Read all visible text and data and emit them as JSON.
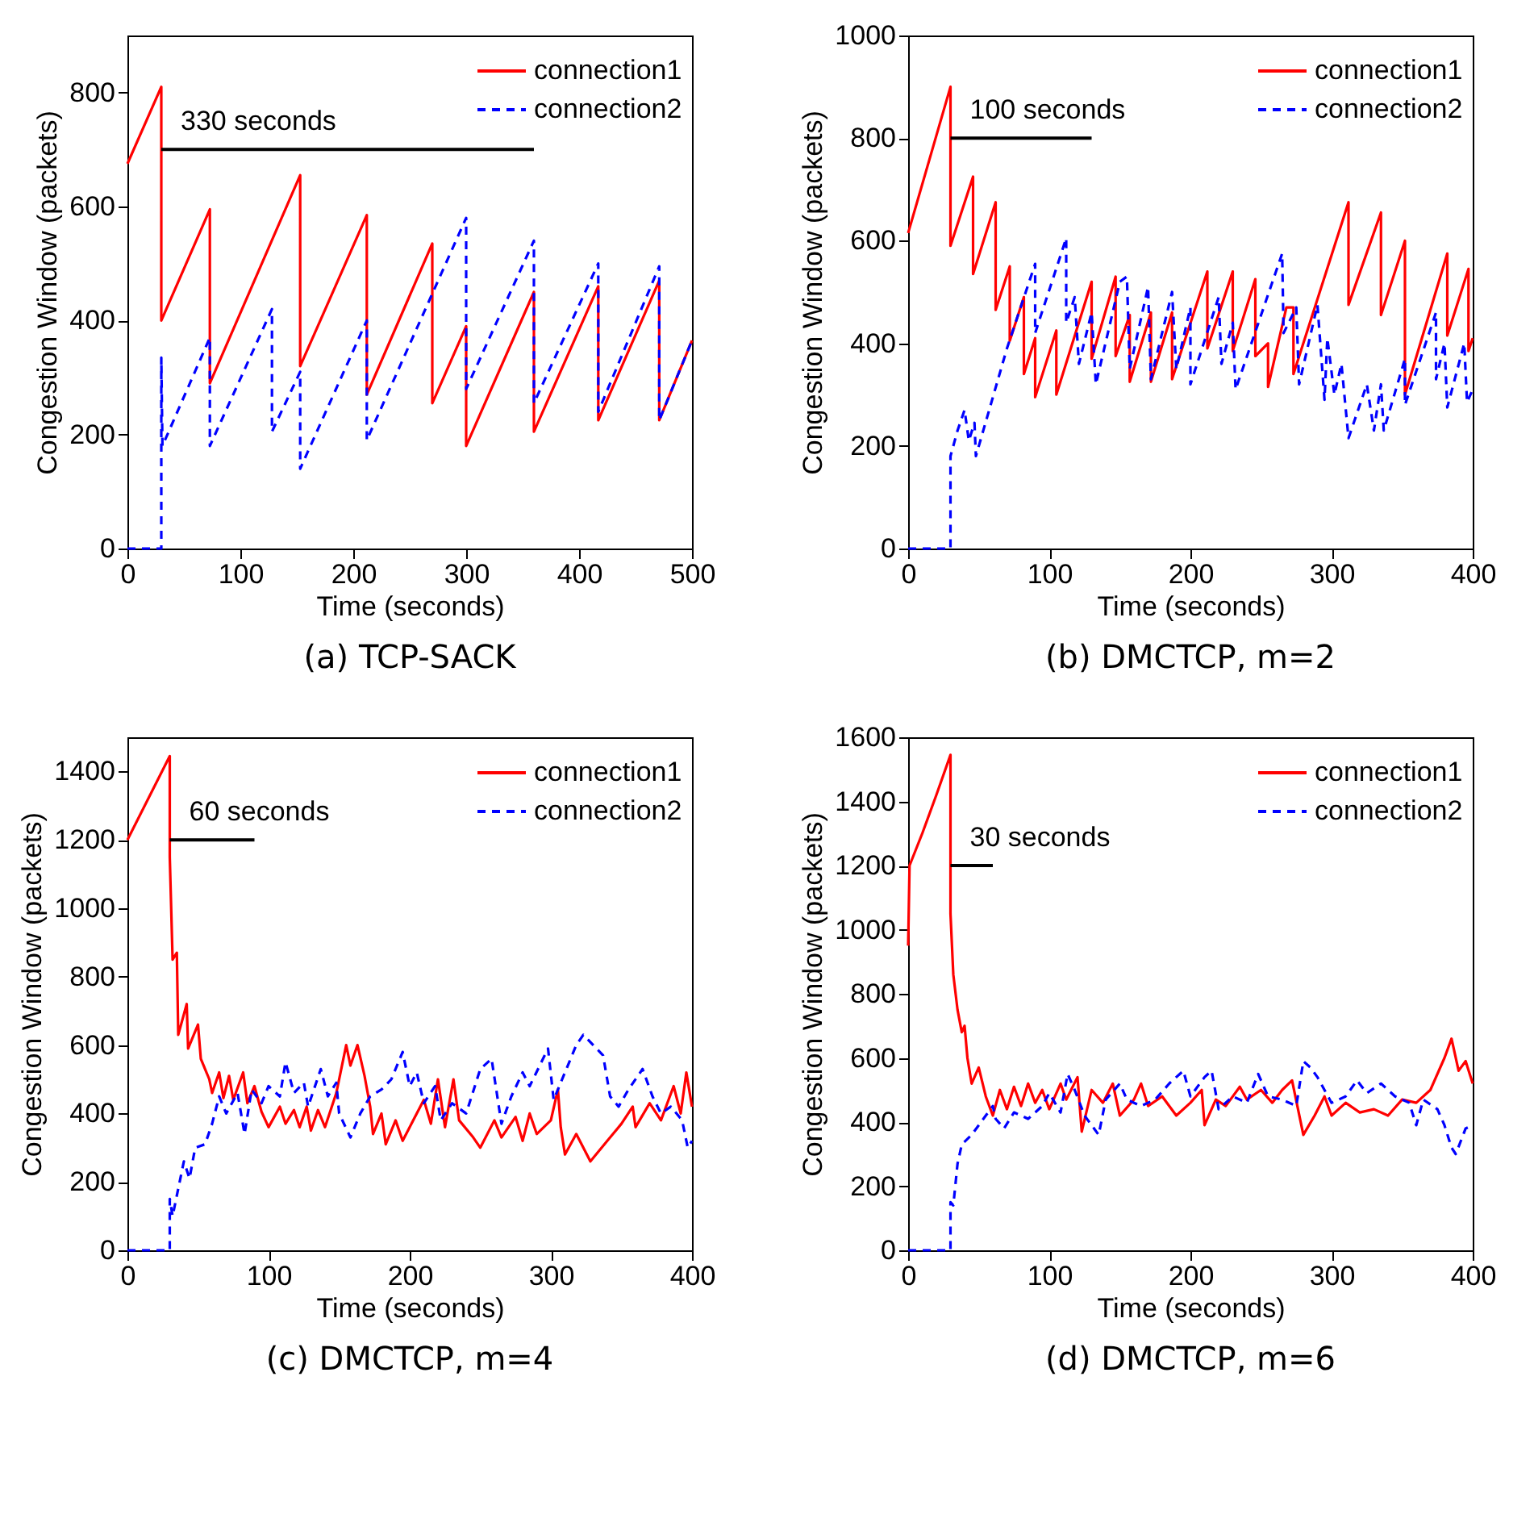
{
  "chart_data": [
    {
      "type": "line",
      "title": "(a) TCP-SACK",
      "xlabel": "Time (seconds)",
      "ylabel": "Congestion Window (packets)",
      "xlim": [
        0,
        500
      ],
      "xticks": [
        0,
        100,
        200,
        300,
        400,
        500
      ],
      "ylim": [
        0,
        900
      ],
      "yticks": [
        0,
        200,
        400,
        600,
        800
      ],
      "grid": false,
      "legend": "top right",
      "marker": "none",
      "series": [
        {
          "name": "connection1",
          "color": "#ff0000",
          "line_style": "solid",
          "x": [
            0,
            30,
            30,
            73,
            73,
            153,
            153,
            212,
            212,
            270,
            270,
            300,
            300,
            360,
            360,
            417,
            417,
            471,
            471,
            500
          ],
          "values": [
            675,
            810,
            400,
            595,
            290,
            655,
            320,
            585,
            270,
            535,
            255,
            390,
            180,
            450,
            205,
            460,
            225,
            470,
            225,
            365
          ]
        },
        {
          "name": "connection2",
          "color": "#0000ff",
          "line_style": "dashed",
          "x": [
            0,
            30,
            30,
            31,
            73,
            73,
            128,
            128,
            153,
            153,
            212,
            212,
            300,
            300,
            360,
            360,
            417,
            417,
            471,
            471,
            500
          ],
          "values": [
            0,
            0,
            335,
            180,
            370,
            180,
            420,
            205,
            310,
            140,
            400,
            190,
            580,
            280,
            540,
            255,
            500,
            240,
            495,
            225,
            365
          ]
        },
        {
          "type": "line",
          "color": "#000000",
          "line_style": "solid",
          "x": [
            30,
            360
          ],
          "values": [
            700,
            700
          ]
        }
      ],
      "annotations": [
        "330 seconds"
      ]
    },
    {
      "type": "line",
      "title": "(b) DMCTCP, m=2",
      "xlabel": "Time (seconds)",
      "ylabel": "Congestion Window (packets)",
      "xlim": [
        0,
        400
      ],
      "xticks": [
        0,
        100,
        200,
        300,
        400
      ],
      "ylim": [
        0,
        1000
      ],
      "yticks": [
        0,
        200,
        400,
        600,
        800,
        1000
      ],
      "grid": false,
      "legend": "top right",
      "marker": "none",
      "series": [
        {
          "name": "connection1",
          "color": "#ff0000",
          "line_style": "solid",
          "x": [
            0,
            30,
            30,
            46,
            46,
            62,
            62,
            72,
            72,
            82,
            82,
            90,
            90,
            105,
            105,
            130,
            130,
            147,
            147,
            157,
            157,
            172,
            172,
            187,
            187,
            212,
            212,
            230,
            230,
            246,
            246,
            255,
            255,
            268,
            273,
            273,
            312,
            312,
            335,
            335,
            352,
            352,
            382,
            382,
            397,
            397,
            400
          ],
          "values": [
            615,
            900,
            590,
            725,
            535,
            675,
            465,
            550,
            405,
            490,
            340,
            410,
            295,
            425,
            300,
            520,
            370,
            530,
            375,
            455,
            325,
            460,
            325,
            460,
            330,
            540,
            390,
            540,
            385,
            525,
            375,
            400,
            315,
            470,
            470,
            340,
            675,
            475,
            655,
            455,
            600,
            300,
            575,
            415,
            545,
            385,
            410
          ]
        },
        {
          "name": "connection2",
          "color": "#0000ff",
          "line_style": "dashed",
          "x": [
            0,
            30,
            30,
            35,
            40,
            43,
            47,
            48,
            70,
            90,
            90,
            112,
            112,
            118,
            121,
            130,
            133,
            150,
            155,
            157,
            170,
            172,
            187,
            190,
            200,
            200,
            220,
            222,
            230,
            232,
            265,
            266,
            275,
            277,
            290,
            295,
            297,
            302,
            307,
            312,
            325,
            330,
            335,
            337,
            352,
            352,
            374,
            374,
            380,
            382,
            394,
            396,
            400
          ],
          "values": [
            0,
            0,
            180,
            230,
            270,
            210,
            245,
            180,
            390,
            555,
            420,
            605,
            440,
            490,
            360,
            460,
            320,
            520,
            530,
            350,
            510,
            330,
            500,
            350,
            470,
            320,
            490,
            360,
            440,
            310,
            575,
            420,
            470,
            320,
            475,
            290,
            410,
            300,
            360,
            215,
            320,
            230,
            320,
            230,
            370,
            280,
            460,
            330,
            400,
            275,
            400,
            285,
            310
          ]
        },
        {
          "type": "line",
          "color": "#000000",
          "line_style": "solid",
          "x": [
            30,
            130
          ],
          "values": [
            800,
            800
          ]
        }
      ],
      "annotations": [
        "100 seconds"
      ]
    },
    {
      "type": "line",
      "title": "(c) DMCTCP, m=4",
      "xlabel": "Time (seconds)",
      "ylabel": "Congestion Window (packets)",
      "xlim": [
        0,
        400
      ],
      "xticks": [
        0,
        100,
        200,
        300,
        400
      ],
      "ylim": [
        0,
        1500
      ],
      "yticks": [
        0,
        200,
        400,
        600,
        800,
        1000,
        1200,
        1400
      ],
      "grid": false,
      "legend": "top right",
      "marker": "none",
      "series": [
        {
          "name": "connection1",
          "color": "#ff0000",
          "line_style": "solid",
          "x": [
            0,
            30,
            30,
            32,
            35,
            36,
            42,
            43,
            50,
            52,
            58,
            60,
            65,
            68,
            72,
            75,
            82,
            85,
            90,
            95,
            100,
            108,
            112,
            118,
            122,
            127,
            130,
            135,
            140,
            148,
            155,
            158,
            163,
            168,
            172,
            174,
            180,
            183,
            190,
            195,
            210,
            215,
            220,
            225,
            231,
            235,
            245,
            250,
            260,
            265,
            275,
            280,
            285,
            290,
            300,
            305,
            307,
            310,
            318,
            328,
            340,
            350,
            358,
            360,
            370,
            378,
            387,
            392,
            396,
            400
          ],
          "values": [
            1200,
            1445,
            1150,
            850,
            870,
            630,
            720,
            590,
            660,
            560,
            500,
            460,
            520,
            445,
            510,
            440,
            520,
            430,
            480,
            405,
            360,
            420,
            370,
            410,
            360,
            420,
            350,
            410,
            360,
            460,
            600,
            540,
            600,
            510,
            420,
            340,
            400,
            310,
            380,
            320,
            440,
            370,
            500,
            360,
            500,
            380,
            330,
            300,
            380,
            330,
            390,
            320,
            400,
            340,
            380,
            470,
            360,
            280,
            340,
            260,
            320,
            370,
            420,
            360,
            430,
            380,
            480,
            400,
            520,
            420
          ]
        },
        {
          "name": "connection2",
          "color": "#0000ff",
          "line_style": "dashed",
          "x": [
            0,
            30,
            30,
            32,
            40,
            44,
            48,
            55,
            60,
            65,
            70,
            78,
            83,
            88,
            95,
            100,
            108,
            112,
            118,
            125,
            128,
            137,
            142,
            148,
            150,
            158,
            165,
            172,
            180,
            187,
            195,
            200,
            205,
            210,
            218,
            222,
            230,
            240,
            250,
            258,
            265,
            272,
            280,
            285,
            298,
            302,
            310,
            318,
            323,
            330,
            337,
            342,
            348,
            355,
            365,
            372,
            378,
            385,
            393,
            397,
            400
          ],
          "values": [
            0,
            0,
            150,
            100,
            260,
            210,
            300,
            310,
            370,
            450,
            400,
            460,
            340,
            470,
            430,
            480,
            450,
            550,
            460,
            490,
            420,
            530,
            450,
            490,
            400,
            330,
            400,
            450,
            470,
            500,
            580,
            480,
            520,
            430,
            480,
            380,
            430,
            400,
            530,
            560,
            370,
            450,
            520,
            480,
            590,
            440,
            520,
            600,
            630,
            600,
            570,
            450,
            420,
            470,
            530,
            450,
            400,
            420,
            380,
            300,
            320
          ]
        },
        {
          "type": "line",
          "color": "#000000",
          "line_style": "solid",
          "x": [
            30,
            90
          ],
          "values": [
            1200,
            1200
          ]
        }
      ],
      "annotations": [
        "60 seconds"
      ]
    },
    {
      "type": "line",
      "title": "(d) DMCTCP, m=6",
      "xlabel": "Time (seconds)",
      "ylabel": "Congestion Window (packets)",
      "xlim": [
        0,
        400
      ],
      "xticks": [
        0,
        100,
        200,
        300,
        400
      ],
      "ylim": [
        0,
        1600
      ],
      "yticks": [
        0,
        200,
        400,
        600,
        800,
        1000,
        1200,
        1400,
        1600
      ],
      "grid": false,
      "legend": "top right",
      "marker": "none",
      "series": [
        {
          "name": "connection1",
          "color": "#ff0000",
          "line_style": "solid",
          "x": [
            0,
            1,
            10,
            20,
            30,
            30,
            32,
            35,
            38,
            40,
            42,
            45,
            50,
            55,
            60,
            65,
            70,
            75,
            80,
            85,
            90,
            95,
            100,
            108,
            112,
            120,
            123,
            130,
            138,
            145,
            150,
            160,
            165,
            170,
            180,
            190,
            200,
            208,
            210,
            218,
            225,
            235,
            240,
            250,
            258,
            265,
            272,
            280,
            288,
            295,
            300,
            310,
            320,
            330,
            340,
            350,
            360,
            370,
            380,
            385,
            390,
            395,
            400
          ],
          "values": [
            950,
            1200,
            1300,
            1420,
            1545,
            1050,
            860,
            750,
            680,
            700,
            600,
            520,
            570,
            480,
            420,
            500,
            440,
            510,
            450,
            520,
            460,
            500,
            440,
            520,
            470,
            540,
            370,
            500,
            460,
            520,
            420,
            470,
            520,
            450,
            480,
            420,
            460,
            500,
            390,
            470,
            450,
            510,
            470,
            500,
            460,
            500,
            530,
            360,
            420,
            480,
            420,
            460,
            430,
            440,
            420,
            470,
            460,
            500,
            600,
            660,
            560,
            590,
            520
          ]
        },
        {
          "name": "connection2",
          "color": "#0000ff",
          "line_style": "dashed",
          "x": [
            0,
            30,
            30,
            32,
            35,
            38,
            45,
            55,
            60,
            62,
            68,
            75,
            85,
            95,
            100,
            108,
            113,
            118,
            125,
            135,
            140,
            150,
            155,
            165,
            175,
            185,
            195,
            200,
            210,
            215,
            220,
            230,
            240,
            248,
            255,
            265,
            275,
            280,
            285,
            290,
            300,
            310,
            318,
            325,
            335,
            345,
            355,
            360,
            365,
            375,
            380,
            385,
            388,
            395,
            400
          ],
          "values": [
            0,
            0,
            150,
            140,
            270,
            330,
            360,
            420,
            450,
            410,
            380,
            430,
            410,
            450,
            490,
            430,
            550,
            500,
            420,
            360,
            470,
            520,
            470,
            450,
            470,
            520,
            560,
            480,
            540,
            560,
            440,
            480,
            460,
            550,
            480,
            470,
            450,
            590,
            570,
            540,
            460,
            480,
            530,
            490,
            520,
            480,
            460,
            390,
            470,
            440,
            390,
            320,
            300,
            380,
            390
          ]
        },
        {
          "type": "line",
          "color": "#000000",
          "line_style": "solid",
          "x": [
            30,
            60
          ],
          "values": [
            1200,
            1200
          ]
        }
      ],
      "annotations": [
        "30 seconds"
      ]
    }
  ]
}
